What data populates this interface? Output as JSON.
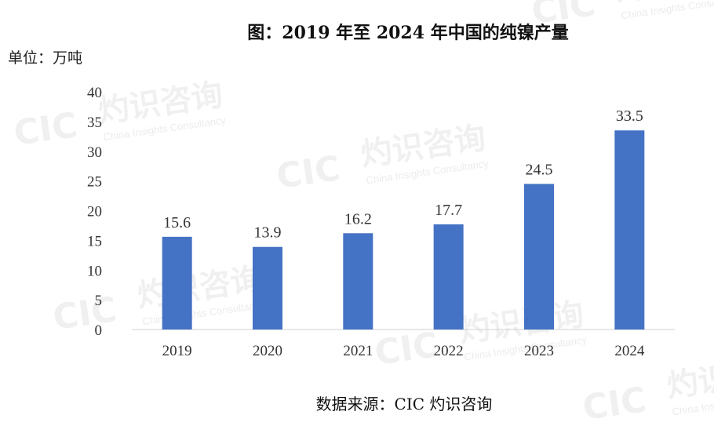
{
  "chart_data": {
    "type": "bar",
    "title": "图：2019 年至 2024 年中国的纯镍产量",
    "ylabel": "单位：万吨",
    "xlabel": "",
    "categories": [
      "2019",
      "2020",
      "2021",
      "2022",
      "2023",
      "2024"
    ],
    "values": [
      15.6,
      13.9,
      16.2,
      17.7,
      24.5,
      33.5
    ],
    "data_labels": [
      "15.6",
      "13.9",
      "16.2",
      "17.7",
      "24.5",
      "33.5"
    ],
    "ylim": [
      0,
      40
    ],
    "yticks": [
      "0",
      "5",
      "10",
      "15",
      "20",
      "25",
      "30",
      "35",
      "40"
    ],
    "bar_color": "#4472c4",
    "grid": false,
    "legend": "none",
    "source": "数据来源：CIC 灼识咨询"
  },
  "watermark": {
    "logo": "CIC",
    "brand_cn": "灼识咨询",
    "brand_en": "China Insights Consultancy"
  }
}
